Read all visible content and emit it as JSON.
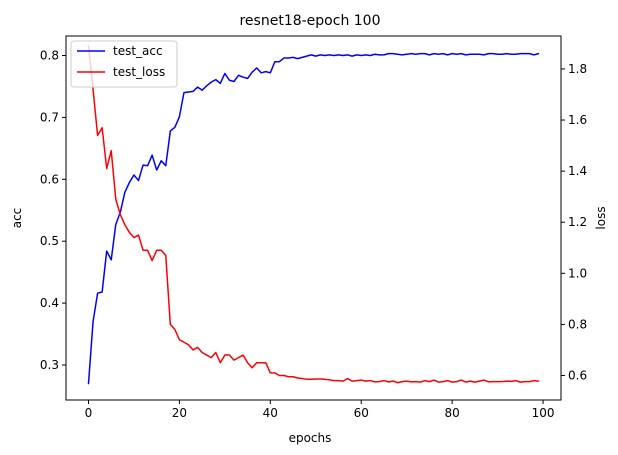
{
  "chart_data": {
    "type": "line",
    "title": "resnet18-epoch 100",
    "xlabel": "epochs",
    "ylabel_left": "acc",
    "ylabel_right": "loss",
    "xlim": [
      -4.95,
      103.95
    ],
    "ylim_left": [
      0.2435,
      0.8315
    ],
    "ylim_right": [
      0.504,
      1.929
    ],
    "x_ticks": [
      0,
      20,
      40,
      60,
      80,
      100
    ],
    "y_ticks_left": [
      0.3,
      0.4,
      0.5,
      0.6,
      0.7,
      0.8
    ],
    "y_ticks_right": [
      0.6,
      0.8,
      1.0,
      1.2,
      1.4,
      1.6,
      1.8
    ],
    "x_tick_labels": [
      "0",
      "20",
      "40",
      "60",
      "80",
      "100"
    ],
    "y_tick_labels_left": [
      "0.3",
      "0.4",
      "0.5",
      "0.6",
      "0.7",
      "0.8"
    ],
    "y_tick_labels_right": [
      "0.6",
      "0.8",
      "1.0",
      "1.2",
      "1.4",
      "1.6",
      "1.8"
    ],
    "legend_position": "upper-left",
    "series": [
      {
        "name": "test_acc",
        "axis": "left",
        "color": "#0000ff",
        "values": [
          0.27,
          0.37,
          0.416,
          0.418,
          0.484,
          0.47,
          0.527,
          0.547,
          0.579,
          0.595,
          0.607,
          0.598,
          0.623,
          0.622,
          0.639,
          0.615,
          0.63,
          0.622,
          0.678,
          0.684,
          0.701,
          0.74,
          0.741,
          0.742,
          0.749,
          0.744,
          0.751,
          0.757,
          0.761,
          0.755,
          0.771,
          0.76,
          0.758,
          0.768,
          0.765,
          0.763,
          0.773,
          0.78,
          0.772,
          0.774,
          0.772,
          0.79,
          0.79,
          0.796,
          0.796,
          0.797,
          0.795,
          0.797,
          0.799,
          0.801,
          0.799,
          0.801,
          0.8,
          0.801,
          0.8,
          0.801,
          0.8,
          0.801,
          0.799,
          0.801,
          0.8,
          0.801,
          0.8,
          0.802,
          0.801,
          0.801,
          0.803,
          0.803,
          0.802,
          0.801,
          0.802,
          0.803,
          0.802,
          0.803,
          0.803,
          0.801,
          0.803,
          0.802,
          0.803,
          0.801,
          0.803,
          0.802,
          0.803,
          0.801,
          0.802,
          0.802,
          0.802,
          0.801,
          0.803,
          0.803,
          0.802,
          0.802,
          0.803,
          0.802,
          0.802,
          0.803,
          0.803,
          0.803,
          0.801,
          0.803
        ]
      },
      {
        "name": "test_loss",
        "axis": "right",
        "color": "#ff0000",
        "values": [
          1.89,
          1.72,
          1.54,
          1.57,
          1.41,
          1.48,
          1.29,
          1.23,
          1.19,
          1.16,
          1.14,
          1.15,
          1.09,
          1.09,
          1.05,
          1.09,
          1.09,
          1.07,
          0.8,
          0.78,
          0.74,
          0.73,
          0.72,
          0.7,
          0.71,
          0.69,
          0.68,
          0.67,
          0.69,
          0.65,
          0.68,
          0.68,
          0.66,
          0.67,
          0.68,
          0.65,
          0.63,
          0.65,
          0.65,
          0.65,
          0.61,
          0.61,
          0.6,
          0.6,
          0.595,
          0.595,
          0.59,
          0.588,
          0.585,
          0.585,
          0.586,
          0.586,
          0.585,
          0.583,
          0.58,
          0.58,
          0.578,
          0.588,
          0.578,
          0.58,
          0.582,
          0.578,
          0.58,
          0.575,
          0.576,
          0.58,
          0.575,
          0.578,
          0.572,
          0.576,
          0.578,
          0.575,
          0.576,
          0.574,
          0.58,
          0.576,
          0.582,
          0.574,
          0.576,
          0.58,
          0.574,
          0.576,
          0.582,
          0.574,
          0.578,
          0.574,
          0.578,
          0.582,
          0.575,
          0.576,
          0.576,
          0.576,
          0.578,
          0.577,
          0.58,
          0.574,
          0.576,
          0.576,
          0.58,
          0.578
        ]
      }
    ]
  }
}
